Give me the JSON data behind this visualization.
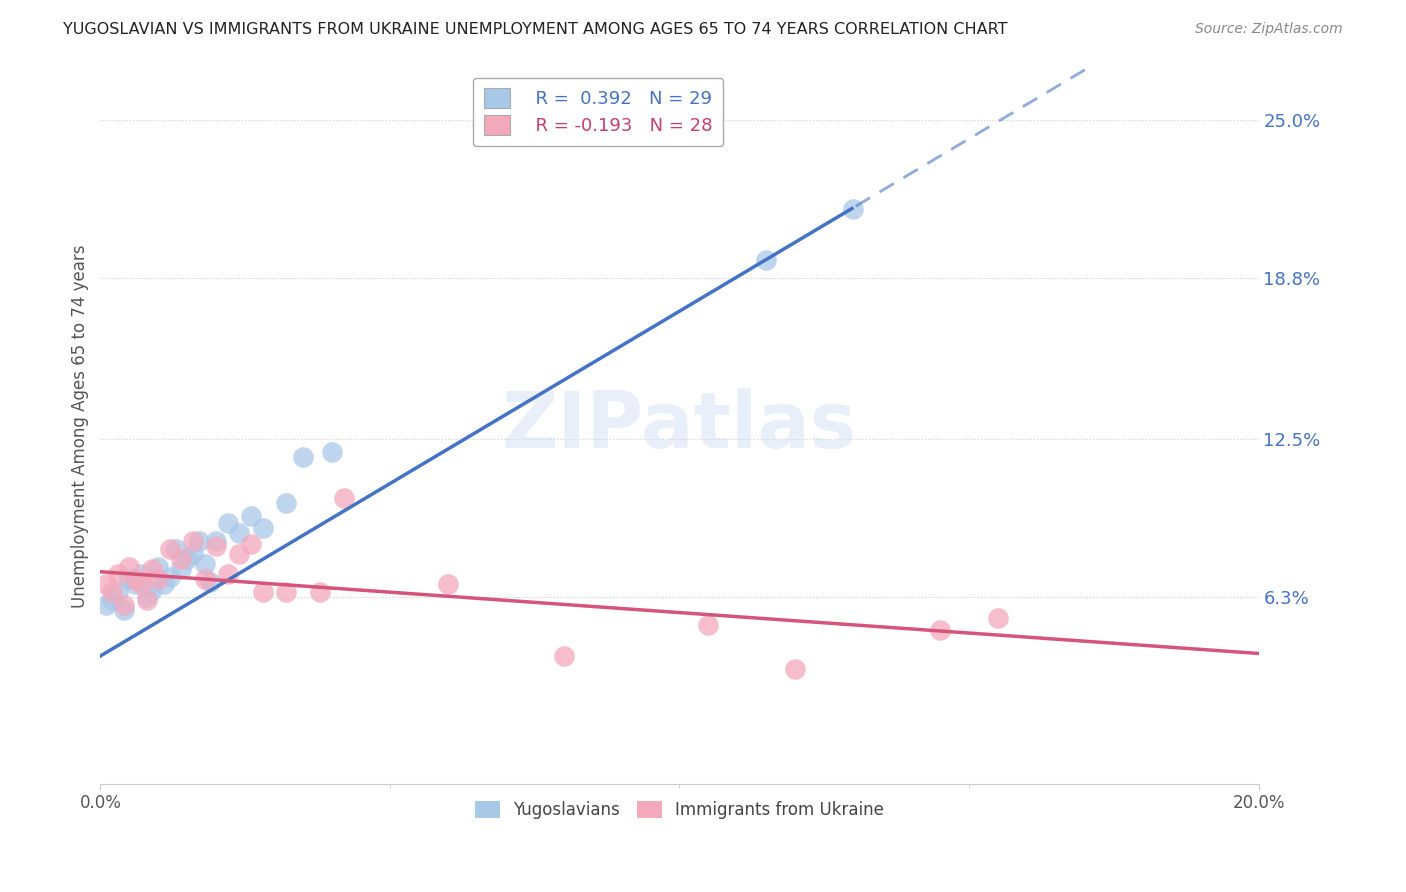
{
  "title": "YUGOSLAVIAN VS IMMIGRANTS FROM UKRAINE UNEMPLOYMENT AMONG AGES 65 TO 74 YEARS CORRELATION CHART",
  "source": "Source: ZipAtlas.com",
  "ylabel": "Unemployment Among Ages 65 to 74 years",
  "ytick_labels": [
    "6.3%",
    "12.5%",
    "18.8%",
    "25.0%"
  ],
  "ytick_values": [
    0.063,
    0.125,
    0.188,
    0.25
  ],
  "xlim": [
    0.0,
    0.2
  ],
  "ylim": [
    -0.01,
    0.27
  ],
  "legend1_r": "0.392",
  "legend1_n": "29",
  "legend2_r": "-0.193",
  "legend2_n": "28",
  "series1_color": "#a8c8e8",
  "series2_color": "#f4a8bc",
  "line1_color": "#4472c4",
  "line2_color": "#d4547a",
  "watermark": "ZIPatlas",
  "background_color": "#ffffff",
  "series1_x": [
    0.001,
    0.002,
    0.003,
    0.004,
    0.005,
    0.006,
    0.007,
    0.008,
    0.009,
    0.01,
    0.011,
    0.012,
    0.013,
    0.014,
    0.015,
    0.016,
    0.017,
    0.018,
    0.019,
    0.02,
    0.022,
    0.024,
    0.026,
    0.028,
    0.032,
    0.035,
    0.04,
    0.115,
    0.13
  ],
  "series1_y": [
    0.06,
    0.062,
    0.065,
    0.058,
    0.07,
    0.068,
    0.072,
    0.063,
    0.066,
    0.075,
    0.068,
    0.071,
    0.082,
    0.074,
    0.078,
    0.08,
    0.085,
    0.076,
    0.069,
    0.085,
    0.092,
    0.088,
    0.095,
    0.09,
    0.1,
    0.118,
    0.12,
    0.195,
    0.215
  ],
  "series2_x": [
    0.001,
    0.002,
    0.003,
    0.004,
    0.005,
    0.006,
    0.007,
    0.008,
    0.009,
    0.01,
    0.012,
    0.014,
    0.016,
    0.018,
    0.02,
    0.022,
    0.024,
    0.026,
    0.028,
    0.032,
    0.038,
    0.042,
    0.06,
    0.08,
    0.105,
    0.12,
    0.145,
    0.155
  ],
  "series2_y": [
    0.068,
    0.065,
    0.072,
    0.06,
    0.075,
    0.07,
    0.068,
    0.062,
    0.074,
    0.07,
    0.082,
    0.078,
    0.085,
    0.07,
    0.083,
    0.072,
    0.08,
    0.084,
    0.065,
    0.065,
    0.065,
    0.102,
    0.068,
    0.04,
    0.052,
    0.035,
    0.05,
    0.055
  ],
  "line1_x_solid_end": 0.13,
  "line1_intercept": 0.04,
  "line1_slope": 1.35,
  "line2_intercept": 0.073,
  "line2_slope": -0.16
}
